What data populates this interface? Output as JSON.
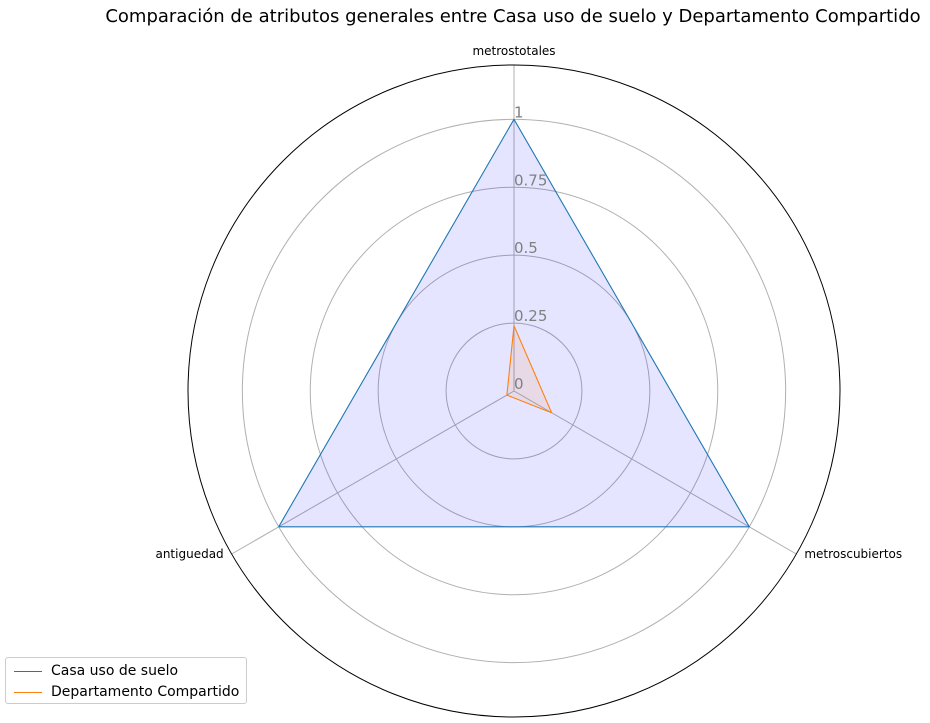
{
  "chart_data": {
    "type": "radar",
    "title": "Comparación de atributos generales entre Casa uso de suelo y Departamento Compartido",
    "axes": [
      "metrostotales",
      "metroscubiertos",
      "antiguedad"
    ],
    "rlim": [
      0,
      1.2
    ],
    "rticks": [
      0,
      0.25,
      0.5,
      0.75,
      1
    ],
    "rtick_labels": [
      "0",
      "0.25",
      "0.5",
      "0.75",
      "1"
    ],
    "grid": true,
    "legend_position": "bottom-left",
    "series": [
      {
        "name": "Casa uso de suelo",
        "values": [
          1.0,
          1.0,
          1.0
        ],
        "color": "#1f77b4",
        "fill": "#0000ff"
      },
      {
        "name": "Departamento Compartido",
        "values": [
          0.24,
          0.16,
          0.03
        ],
        "color": "#ff7f0e",
        "fill": "#ff7f0e"
      }
    ]
  }
}
